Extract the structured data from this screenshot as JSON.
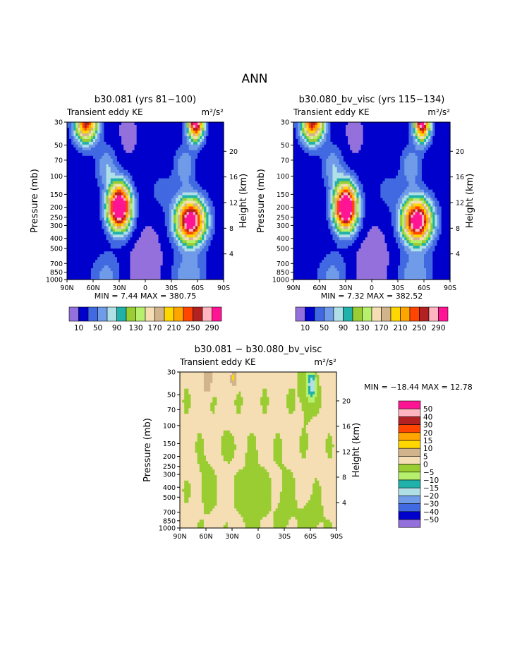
{
  "main_title": "ANN",
  "panels": [
    {
      "title": "b30.081 (yrs 81−100)",
      "subtitle_left": "Transient eddy KE",
      "subtitle_right": "m²/s²",
      "min_max": "MIN =    7.44   MAX = 380.75",
      "kind": "mean"
    },
    {
      "title": "b30.080_bv_visc (yrs 115−134)",
      "subtitle_left": "Transient eddy KE",
      "subtitle_right": "m²/s²",
      "min_max": "MIN =    7.32   MAX = 382.52",
      "kind": "mean"
    },
    {
      "title": "b30.081 − b30.080_bv_visc",
      "subtitle_left": "Transient eddy KE",
      "subtitle_right": "m²/s²",
      "min_max": "MIN = −18.44   MAX =   12.78",
      "kind": "diff"
    }
  ],
  "axes": {
    "ylabel": "Pressure (mb)",
    "ylabel_right": "Height (km)",
    "pressure_ticks": [
      "30",
      "50",
      "70",
      "100",
      "150",
      "200",
      "250",
      "300",
      "400",
      "500",
      "700",
      "850",
      "1000"
    ],
    "height_ticks": [
      "20",
      "16",
      "12",
      "8",
      "4"
    ],
    "lat_ticks": [
      "90N",
      "60N",
      "30N",
      "0",
      "30S",
      "60S",
      "90S"
    ]
  },
  "colorbar_mean": {
    "labels": [
      "10",
      "50",
      "90",
      "130",
      "170",
      "210",
      "250",
      "290"
    ],
    "colors": [
      "#9370db",
      "#0000cd",
      "#4169e1",
      "#6f9be8",
      "#b0e0e6",
      "#20b2aa",
      "#9acd32",
      "#b6f06d",
      "#f5deb3",
      "#d2b48c",
      "#ffd700",
      "#ffa500",
      "#ff4500",
      "#b22222",
      "#ffb6c1",
      "#ff1493"
    ]
  },
  "colorbar_diff": {
    "labels": [
      "50",
      "40",
      "30",
      "20",
      "15",
      "10",
      "5",
      "0",
      "−5",
      "−10",
      "−15",
      "−20",
      "−30",
      "−40",
      "−50"
    ],
    "colors": [
      "#ff1493",
      "#ffb6c1",
      "#b22222",
      "#ff4500",
      "#ffa500",
      "#ffd700",
      "#d2b48c",
      "#f5deb3",
      "#9acd32",
      "#b6f06d",
      "#20b2aa",
      "#b0e0e6",
      "#6f9be8",
      "#4169e1",
      "#0000cd",
      "#9370db"
    ]
  },
  "chart_data": [
    {
      "type": "heatmap",
      "title": "b30.081 (yrs 81−100)",
      "variable": "Transient eddy KE",
      "units": "m²/s²",
      "xlabel": "",
      "ylabel": "Pressure (mb)",
      "ylabel_right": "Height (km)",
      "xlim": [
        90,
        -90
      ],
      "ylim": [
        1000,
        30
      ],
      "y_scale": "log",
      "min": 7.44,
      "max": 380.75,
      "contour_levels": [
        10,
        30,
        50,
        70,
        90,
        110,
        130,
        150,
        170,
        190,
        210,
        230,
        250,
        270,
        290
      ],
      "features": [
        {
          "name": "NH upper-tropospheric jet maximum",
          "lat": 30,
          "pressure": 200,
          "value": 380
        },
        {
          "name": "SH upper-tropospheric jet maximum",
          "lat": -52,
          "pressure": 270,
          "value": 330
        },
        {
          "name": "NH stratospheric maximum",
          "lat": 68,
          "pressure": 30,
          "value": 260
        },
        {
          "name": "SH stratospheric maximum",
          "lat": -58,
          "pressure": 30,
          "value": 310
        },
        {
          "name": "tropical minimum",
          "lat": 0,
          "pressure": 700,
          "value": 7
        }
      ]
    },
    {
      "type": "heatmap",
      "title": "b30.080_bv_visc (yrs 115−134)",
      "variable": "Transient eddy KE",
      "units": "m²/s²",
      "xlabel": "",
      "ylabel": "Pressure (mb)",
      "ylabel_right": "Height (km)",
      "xlim": [
        90,
        -90
      ],
      "ylim": [
        1000,
        30
      ],
      "y_scale": "log",
      "min": 7.32,
      "max": 382.52,
      "contour_levels": [
        10,
        30,
        50,
        70,
        90,
        110,
        130,
        150,
        170,
        190,
        210,
        230,
        250,
        270,
        290
      ],
      "features": [
        {
          "name": "NH upper-tropospheric jet maximum",
          "lat": 30,
          "pressure": 200,
          "value": 382
        },
        {
          "name": "SH upper-tropospheric jet maximum",
          "lat": -52,
          "pressure": 270,
          "value": 335
        },
        {
          "name": "NH stratospheric maximum",
          "lat": 68,
          "pressure": 30,
          "value": 260
        },
        {
          "name": "SH stratospheric maximum",
          "lat": -58,
          "pressure": 30,
          "value": 305
        },
        {
          "name": "tropical minimum",
          "lat": 0,
          "pressure": 700,
          "value": 7
        }
      ]
    },
    {
      "type": "heatmap",
      "title": "b30.081 − b30.080_bv_visc",
      "variable": "Transient eddy KE",
      "units": "m²/s²",
      "xlabel": "",
      "ylabel": "Pressure (mb)",
      "ylabel_right": "Height (km)",
      "xlim": [
        90,
        -90
      ],
      "ylim": [
        1000,
        30
      ],
      "y_scale": "log",
      "min": -18.44,
      "max": 12.78,
      "contour_levels": [
        -50,
        -40,
        -30,
        -20,
        -15,
        -10,
        -5,
        0,
        5,
        10,
        15,
        20,
        30,
        40,
        50
      ],
      "features": [
        {
          "name": "positive stratospheric anomaly",
          "lat": 58,
          "pressure": 30,
          "value": 12
        },
        {
          "name": "positive stratospheric anomaly",
          "lat": 28,
          "pressure": 40,
          "value": 8
        },
        {
          "name": "negative stratospheric anomaly",
          "lat": -62,
          "pressure": 40,
          "value": -18
        }
      ]
    }
  ]
}
